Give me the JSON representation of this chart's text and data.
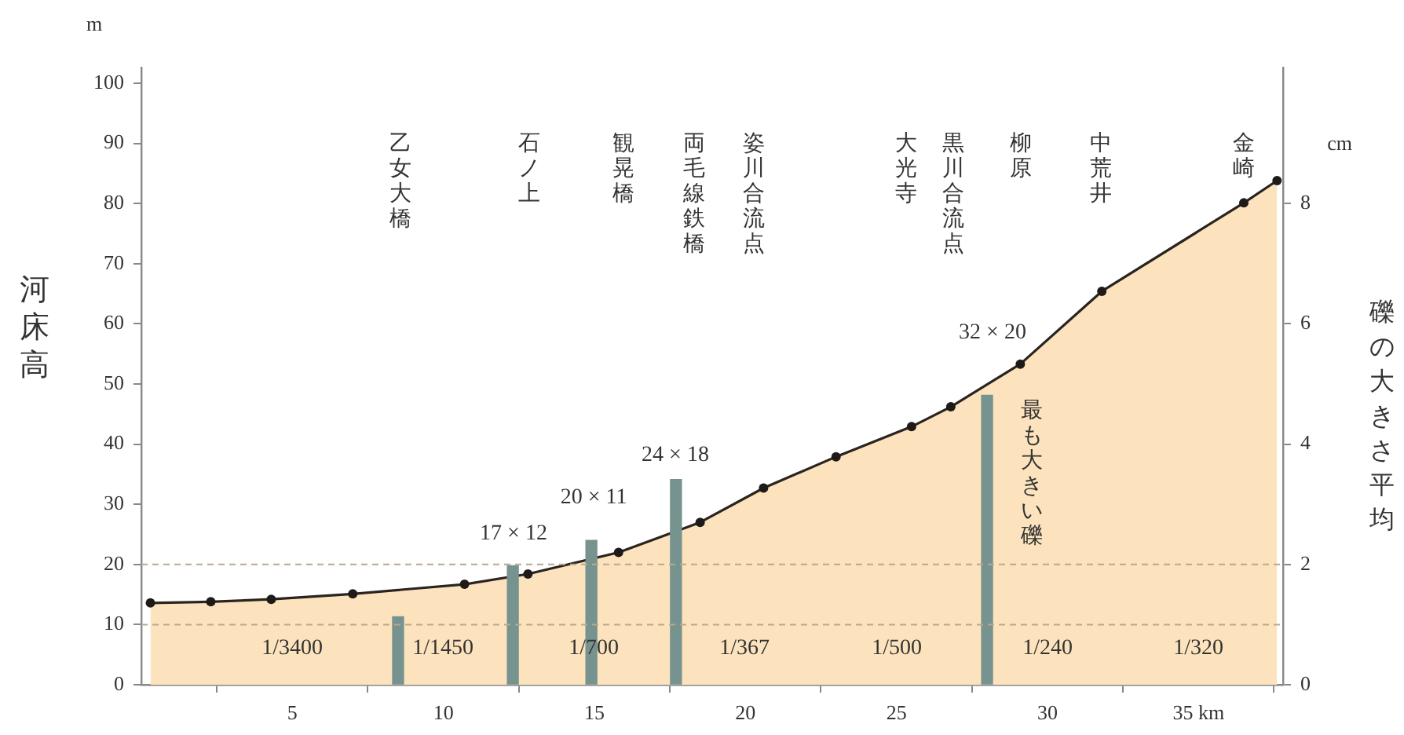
{
  "chart_data": {
    "type": "area",
    "ylabel": "河床高",
    "y2label": "礫の大きさ平均",
    "xlim": [
      0,
      37.8
    ],
    "xticks": [
      5,
      10,
      15,
      20,
      25,
      30,
      {
        "value": 35,
        "label": "35 km"
      }
    ],
    "ylim": [
      0,
      102.6
    ],
    "yticks": [
      0,
      10,
      20,
      30,
      40,
      50,
      60,
      70,
      80,
      90,
      100
    ],
    "y2lim": [
      0,
      10.26
    ],
    "y2ticks": [
      0,
      2,
      4,
      6,
      8
    ],
    "grid": false,
    "legend": false,
    "marker": "circle",
    "series": [
      {
        "color": "#fce3bd",
        "x": [
          0.3,
          2.3,
          4.3,
          7.0,
          10.7,
          12.8,
          15.8,
          18.5,
          20.6,
          23.0,
          25.5,
          26.8,
          29.1,
          31.8,
          36.5,
          37.6
        ],
        "values": [
          13.6,
          13.8,
          14.2,
          15.1,
          16.7,
          18.4,
          22.0,
          27.0,
          32.7,
          37.9,
          42.9,
          46.2,
          53.3,
          65.4,
          80.1,
          83.8
        ]
      },
      {
        "type": "bar",
        "axis": "y2",
        "color": "#76938f",
        "x": [
          8.5,
          12.3,
          14.9,
          17.7,
          28.0
        ],
        "values": [
          1.13,
          1.98,
          2.4,
          3.41,
          4.81
        ]
      }
    ],
    "ref_lines": [
      {
        "axis": "y",
        "value": 10,
        "color": "#b9a98c",
        "line_style": "dashed"
      },
      {
        "axis": "y",
        "value": 20,
        "color": "#b9a98c",
        "line_style": "dashed"
      }
    ],
    "annotations": [
      "m",
      "cm",
      "乙女大橋",
      "石ノ上",
      "観晃橋",
      "両毛線鉄橋",
      "姿川合流点",
      "大光寺",
      "黒川合流点",
      "柳原",
      "中荒井",
      "金崎",
      "17 × 12",
      "20 × 11",
      "24 × 18",
      "32 × 20",
      "最も大きい礫",
      "1/3400",
      "1/1450",
      "1/700",
      "1/367",
      "1/500",
      "1/240",
      "1/320"
    ]
  }
}
